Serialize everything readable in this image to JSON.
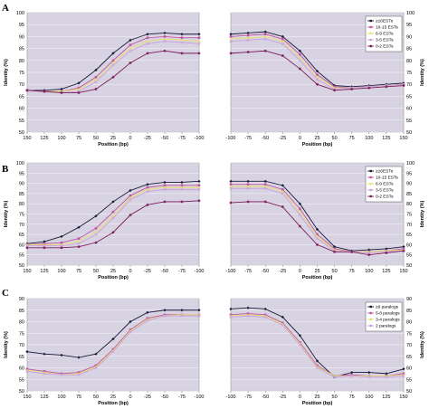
{
  "panels": [
    {
      "letter": "A",
      "legend": [
        "≥16ESTs",
        "10-15 ESTs",
        "6-9 ESTs",
        "3-5 ESTs",
        "0-2 ESTs"
      ]
    },
    {
      "letter": "B",
      "legend": [
        "≥16ESTs",
        "10-15 ESTs",
        "6-9 ESTs",
        "3-5 ESTs",
        "0-2 ESTs"
      ]
    },
    {
      "letter": "C",
      "legend": [
        "≥9 paralogs",
        "5-8 paralogs",
        "3-4 paralogs",
        "2 paralogs"
      ]
    }
  ],
  "colors": {
    "plot_background": "#d8d3e2",
    "series": [
      "#1a1a3a",
      "#c0559f",
      "#e6e06a",
      "#c9a0e0",
      "#7a1a5a"
    ]
  },
  "chart_data": [
    {
      "type": "line",
      "panel": "A",
      "side": "left",
      "xlabel": "Position (bp)",
      "ylabel": "Identity (%)",
      "x": [
        150,
        125,
        100,
        75,
        50,
        25,
        0,
        -25,
        -50,
        -75,
        -100
      ],
      "xlim": [
        150,
        -100
      ],
      "ylim": [
        50,
        100
      ],
      "yticks": [
        50,
        55,
        60,
        65,
        70,
        75,
        80,
        85,
        90,
        95,
        100
      ],
      "xticks": [
        150,
        125,
        100,
        75,
        50,
        25,
        0,
        -25,
        -50,
        -75,
        -100
      ],
      "series": [
        {
          "name": "≥16ESTs",
          "values": [
            67.5,
            67.5,
            68,
            70.5,
            76,
            83,
            88.5,
            91,
            91.5,
            91,
            91
          ]
        },
        {
          "name": "10-15 ESTs",
          "values": [
            67.5,
            67,
            67,
            68.5,
            73,
            80,
            86.5,
            89.5,
            90,
            89.5,
            89.5
          ]
        },
        {
          "name": "6-9 ESTs",
          "values": [
            67.5,
            67,
            67,
            68,
            72,
            79,
            85,
            88,
            89,
            88.5,
            88
          ]
        },
        {
          "name": "3-5 ESTs",
          "values": [
            67.5,
            67,
            66.5,
            67,
            71,
            78,
            84,
            87,
            88,
            87.5,
            87
          ]
        },
        {
          "name": "0-2 ESTs",
          "values": [
            67.5,
            67,
            66.5,
            66.5,
            68,
            73,
            79,
            83,
            84,
            83,
            83
          ]
        }
      ],
      "legend_position": "none"
    },
    {
      "type": "line",
      "panel": "A",
      "side": "right",
      "xlabel": "Position (bp)",
      "ylabel": "Identity (%)",
      "x": [
        -100,
        -75,
        -50,
        -25,
        0,
        25,
        50,
        75,
        100,
        125,
        150
      ],
      "xlim": [
        -100,
        150
      ],
      "ylim": [
        50,
        100
      ],
      "yticks": [
        50,
        55,
        60,
        65,
        70,
        75,
        80,
        85,
        90,
        95,
        100
      ],
      "xticks": [
        -100,
        -75,
        -50,
        -25,
        0,
        25,
        50,
        75,
        100,
        125,
        150
      ],
      "series": [
        {
          "name": "≥16ESTs",
          "values": [
            91,
            91.5,
            92,
            90,
            84,
            75.5,
            69.5,
            69,
            69.5,
            70,
            70.5
          ]
        },
        {
          "name": "10-15 ESTs",
          "values": [
            90,
            90.5,
            91,
            89,
            82.5,
            74,
            69,
            68.5,
            69,
            69.5,
            70
          ]
        },
        {
          "name": "6-9 ESTs",
          "values": [
            89,
            89.5,
            90,
            88,
            81,
            73,
            68.5,
            68.5,
            69,
            69.5,
            70
          ]
        },
        {
          "name": "3-5 ESTs",
          "values": [
            88,
            88.5,
            89,
            87,
            80,
            72,
            68,
            68.5,
            69,
            69.5,
            70
          ]
        },
        {
          "name": "0-2 ESTs",
          "values": [
            83,
            83.5,
            84,
            82,
            76.5,
            70,
            67.5,
            68,
            68.5,
            69,
            69.5
          ]
        }
      ],
      "legend_position": "top-right"
    },
    {
      "type": "line",
      "panel": "B",
      "side": "left",
      "xlabel": "Position (bp)",
      "ylabel": "Identity (%)",
      "x": [
        150,
        125,
        100,
        75,
        50,
        25,
        0,
        -25,
        -50,
        -75,
        -100
      ],
      "xlim": [
        150,
        -100
      ],
      "ylim": [
        50,
        100
      ],
      "yticks": [
        50,
        55,
        60,
        65,
        70,
        75,
        80,
        85,
        90,
        95,
        100
      ],
      "xticks": [
        150,
        125,
        100,
        75,
        50,
        25,
        0,
        -25,
        -50,
        -75,
        -100
      ],
      "series": [
        {
          "name": "≥16ESTs",
          "values": [
            60.5,
            61.5,
            64,
            68.5,
            74,
            81,
            86.5,
            89.5,
            90.5,
            90.5,
            91
          ]
        },
        {
          "name": "10-15 ESTs",
          "values": [
            60,
            60.5,
            61,
            63,
            68,
            76,
            84,
            88,
            89,
            89,
            89
          ]
        },
        {
          "name": "6-9 ESTs",
          "values": [
            60,
            60,
            60,
            61.5,
            66,
            74,
            83,
            87,
            88,
            88,
            88
          ]
        },
        {
          "name": "3-5 ESTs",
          "values": [
            59.5,
            59.5,
            59.5,
            60.5,
            65,
            73,
            82,
            86,
            87,
            87,
            87
          ]
        },
        {
          "name": "0-2 ESTs",
          "values": [
            58.5,
            58.5,
            58.5,
            59,
            61,
            66,
            74.5,
            79.5,
            81,
            81,
            81.5
          ]
        }
      ],
      "legend_position": "none"
    },
    {
      "type": "line",
      "panel": "B",
      "side": "right",
      "xlabel": "Position (bp)",
      "ylabel": "Identity (%)",
      "x": [
        -100,
        -75,
        -50,
        -25,
        0,
        25,
        50,
        75,
        100,
        125,
        150
      ],
      "xlim": [
        -100,
        150
      ],
      "ylim": [
        50,
        100
      ],
      "yticks": [
        50,
        55,
        60,
        65,
        70,
        75,
        80,
        85,
        90,
        95,
        100
      ],
      "xticks": [
        -100,
        -75,
        -50,
        -25,
        0,
        25,
        50,
        75,
        100,
        125,
        150
      ],
      "series": [
        {
          "name": "≥16ESTs",
          "values": [
            91,
            91,
            91,
            89,
            80,
            67.5,
            59,
            57,
            57.5,
            58,
            59
          ]
        },
        {
          "name": "10-15 ESTs",
          "values": [
            89.5,
            89.5,
            89.5,
            87,
            77.5,
            65,
            58,
            56.5,
            56.5,
            57,
            58
          ]
        },
        {
          "name": "6-9 ESTs",
          "values": [
            88.5,
            88.5,
            88.5,
            86,
            76,
            64,
            57.5,
            56.5,
            56.5,
            57,
            57.5
          ]
        },
        {
          "name": "3-5 ESTs",
          "values": [
            87.5,
            87.5,
            87.5,
            85,
            74.5,
            63,
            57,
            56.5,
            56,
            56.5,
            57
          ]
        },
        {
          "name": "0-2 ESTs",
          "values": [
            80.5,
            81,
            81,
            78.5,
            69,
            60,
            56.5,
            56.5,
            55,
            56,
            57
          ]
        }
      ],
      "legend_position": "top-right"
    },
    {
      "type": "line",
      "panel": "C",
      "side": "left",
      "xlabel": "Position (bp)",
      "ylabel": "Identity (%)",
      "x": [
        150,
        125,
        100,
        75,
        50,
        25,
        0,
        -25,
        -50,
        -75,
        -100
      ],
      "xlim": [
        150,
        -100
      ],
      "ylim": [
        50,
        90
      ],
      "yticks": [
        50,
        55,
        60,
        65,
        70,
        75,
        80,
        85,
        90
      ],
      "xticks": [
        150,
        125,
        100,
        75,
        50,
        25,
        0,
        -25,
        -50,
        -75,
        -100
      ],
      "series": [
        {
          "name": "≥9 paralogs",
          "values": [
            67,
            66,
            65.5,
            64.5,
            66,
            72.5,
            80,
            84,
            85,
            85,
            85
          ]
        },
        {
          "name": "5-8 paralogs",
          "values": [
            59.5,
            58.5,
            57.5,
            58,
            61,
            68,
            76.5,
            81.5,
            83,
            83,
            83
          ]
        },
        {
          "name": "3-4 paralogs",
          "values": [
            59,
            58,
            57,
            57.5,
            60.5,
            67.5,
            76,
            81,
            82.5,
            83,
            83
          ]
        },
        {
          "name": "2 paralogs",
          "values": [
            58.5,
            57.5,
            57,
            57,
            60,
            67,
            75.5,
            80.5,
            82.5,
            82.5,
            82.5
          ]
        }
      ],
      "legend_position": "none"
    },
    {
      "type": "line",
      "panel": "C",
      "side": "right",
      "xlabel": "Position (bp)",
      "ylabel": "Identity (%)",
      "x": [
        -100,
        -75,
        -50,
        -25,
        0,
        25,
        50,
        75,
        100,
        125,
        150
      ],
      "xlim": [
        -100,
        150
      ],
      "ylim": [
        50,
        90
      ],
      "yticks": [
        50,
        55,
        60,
        65,
        70,
        75,
        80,
        85,
        90
      ],
      "xticks": [
        -100,
        -75,
        -50,
        -25,
        0,
        25,
        50,
        75,
        100,
        125,
        150
      ],
      "series": [
        {
          "name": "≥9 paralogs",
          "values": [
            85.5,
            86,
            85.5,
            82,
            74,
            63,
            56,
            58,
            58,
            57.5,
            59.5
          ]
        },
        {
          "name": "5-8 paralogs",
          "values": [
            83,
            83.5,
            83,
            79.5,
            71,
            61,
            56.5,
            57,
            56.5,
            56.5,
            57.5
          ]
        },
        {
          "name": "3-4 paralogs",
          "values": [
            82.5,
            83,
            82.5,
            79,
            70.5,
            60.5,
            56.5,
            56.5,
            56.5,
            56.5,
            57
          ]
        },
        {
          "name": "2 paralogs",
          "values": [
            82,
            82.5,
            82,
            78.5,
            70,
            60,
            56,
            56.5,
            56,
            56,
            56.5
          ]
        }
      ],
      "legend_position": "top-right"
    }
  ]
}
